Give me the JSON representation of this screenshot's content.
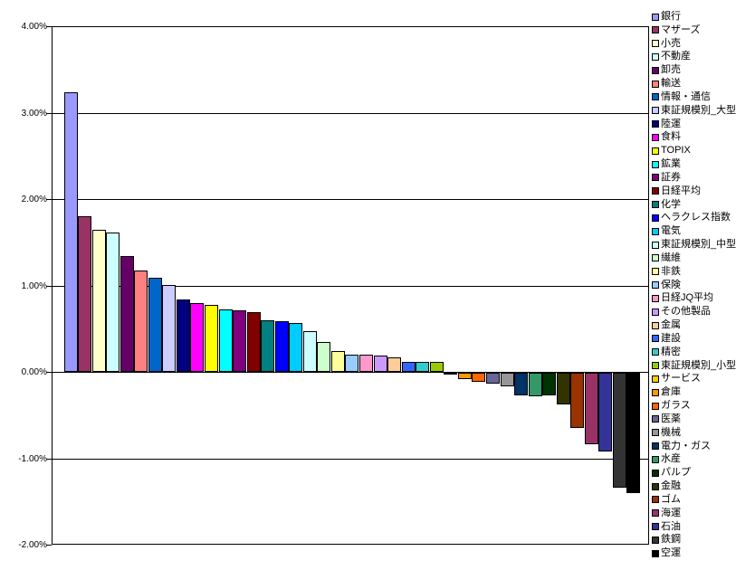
{
  "chart_data": {
    "type": "bar",
    "title": "",
    "xlabel": "",
    "ylabel": "",
    "ylim": [
      -2,
      4
    ],
    "grid": true,
    "legend_position": "right",
    "y_ticks": [
      {
        "label": "4.00%",
        "value": 4
      },
      {
        "label": "3.00%",
        "value": 3
      },
      {
        "label": "2.00%",
        "value": 2
      },
      {
        "label": "1.00%",
        "value": 1
      },
      {
        "label": "0.00%",
        "value": 0
      },
      {
        "label": "-1.00%",
        "value": -1
      },
      {
        "label": "-2.00%",
        "value": -2
      }
    ],
    "series": [
      {
        "name": "銀行",
        "value": 3.24,
        "color": "#9999FF"
      },
      {
        "name": "マザーズ",
        "value": 1.8,
        "color": "#993366"
      },
      {
        "name": "小売",
        "value": 1.64,
        "color": "#FFFFCC"
      },
      {
        "name": "不動産",
        "value": 1.61,
        "color": "#CCFFFF"
      },
      {
        "name": "卸売",
        "value": 1.34,
        "color": "#660066"
      },
      {
        "name": "輸送",
        "value": 1.17,
        "color": "#FF8080"
      },
      {
        "name": "情報・通信",
        "value": 1.09,
        "color": "#0066CC"
      },
      {
        "name": "東証規模別_大型",
        "value": 1.01,
        "color": "#CCCCFF"
      },
      {
        "name": "陸運",
        "value": 0.84,
        "color": "#000080"
      },
      {
        "name": "食料",
        "value": 0.8,
        "color": "#FF00FF"
      },
      {
        "name": "TOPIX",
        "value": 0.77,
        "color": "#FFFF00"
      },
      {
        "name": "鉱業",
        "value": 0.72,
        "color": "#00FFFF"
      },
      {
        "name": "証券",
        "value": 0.71,
        "color": "#800080"
      },
      {
        "name": "日経平均",
        "value": 0.69,
        "color": "#800000"
      },
      {
        "name": "化学",
        "value": 0.6,
        "color": "#008080"
      },
      {
        "name": "ヘラクレス指数",
        "value": 0.59,
        "color": "#0000FF"
      },
      {
        "name": "電気",
        "value": 0.57,
        "color": "#00CCFF"
      },
      {
        "name": "東証規模別_中型",
        "value": 0.47,
        "color": "#CCFFFF"
      },
      {
        "name": "繊維",
        "value": 0.35,
        "color": "#CCFFCC"
      },
      {
        "name": "非鉄",
        "value": 0.24,
        "color": "#FFFF99"
      },
      {
        "name": "保険",
        "value": 0.2,
        "color": "#99CCFF"
      },
      {
        "name": "日経JQ平均",
        "value": 0.2,
        "color": "#FF99CC"
      },
      {
        "name": "その他製品",
        "value": 0.19,
        "color": "#CC99FF"
      },
      {
        "name": "金属",
        "value": 0.17,
        "color": "#FFCC99"
      },
      {
        "name": "建設",
        "value": 0.12,
        "color": "#3366FF"
      },
      {
        "name": "精密",
        "value": 0.12,
        "color": "#33CCCC"
      },
      {
        "name": "東証規模別_小型",
        "value": 0.11,
        "color": "#99CC00"
      },
      {
        "name": "サービス",
        "value": -0.02,
        "color": "#FFCC00"
      },
      {
        "name": "倉庫",
        "value": -0.07,
        "color": "#FF9900"
      },
      {
        "name": "ガラス",
        "value": -0.1,
        "color": "#FF6600"
      },
      {
        "name": "医薬",
        "value": -0.13,
        "color": "#666699"
      },
      {
        "name": "機械",
        "value": -0.16,
        "color": "#969696"
      },
      {
        "name": "電力・ガス",
        "value": -0.26,
        "color": "#003366"
      },
      {
        "name": "水産",
        "value": -0.27,
        "color": "#339966"
      },
      {
        "name": "パルプ",
        "value": -0.26,
        "color": "#003300"
      },
      {
        "name": "金融",
        "value": -0.37,
        "color": "#333300"
      },
      {
        "name": "ゴム",
        "value": -0.64,
        "color": "#993300"
      },
      {
        "name": "海運",
        "value": -0.83,
        "color": "#993366"
      },
      {
        "name": "石油",
        "value": -0.91,
        "color": "#333399"
      },
      {
        "name": "鉄鋼",
        "value": -1.33,
        "color": "#333333"
      },
      {
        "name": "空運",
        "value": -1.39,
        "color": "#000000"
      }
    ]
  }
}
